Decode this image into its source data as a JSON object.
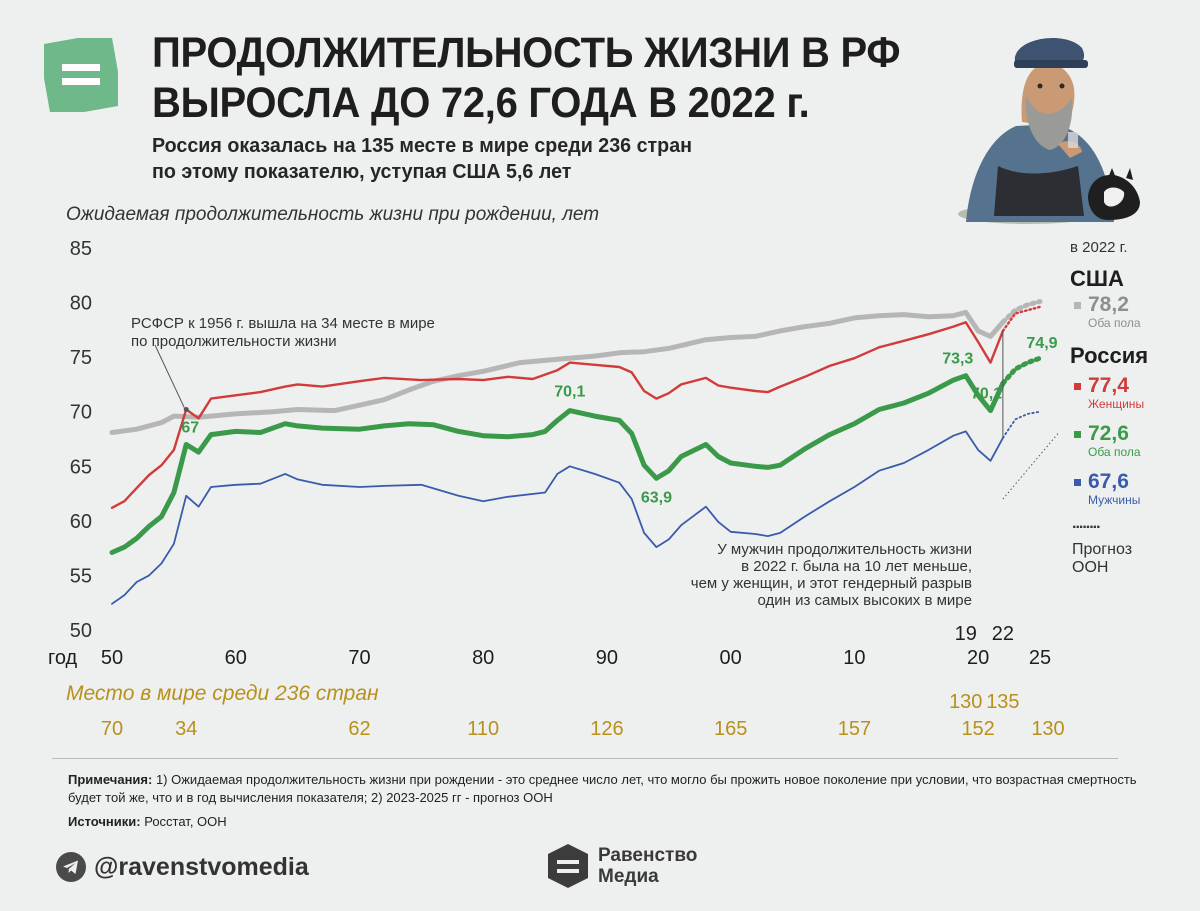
{
  "header": {
    "title_line1": "ПРОДОЛЖИТЕЛЬНОСТЬ ЖИЗНИ В РФ",
    "title_line2": "ВЫРОСЛА ДО 72,6 ГОДА В 2022 г.",
    "subtitle_line1": "Россия оказалась на 135 месте в мире среди 236 стран",
    "subtitle_line2": "по этому показателю, уступая США 5,6 лет"
  },
  "colors": {
    "usa": "#b6b6b6",
    "women": "#d23b3b",
    "both": "#3a9a4a",
    "men": "#3a5bab",
    "rank": "#b8901c",
    "logo": "#6fb88a"
  },
  "chart_data": {
    "type": "line",
    "title": "Ожидаемая продолжительность жизни при рождении, лет",
    "xlabel": "год",
    "ylim": [
      50,
      85
    ],
    "xlim": [
      1950,
      2025
    ],
    "y_ticks": [
      "50",
      "55",
      "60",
      "65",
      "70",
      "75",
      "80",
      "85"
    ],
    "x_ticks": [
      {
        "x": 1950,
        "label": "50"
      },
      {
        "x": 1960,
        "label": "60"
      },
      {
        "x": 1970,
        "label": "70"
      },
      {
        "x": 1980,
        "label": "80"
      },
      {
        "x": 1990,
        "label": "90"
      },
      {
        "x": 2000,
        "label": "00"
      },
      {
        "x": 2010,
        "label": "10"
      },
      {
        "x": 2020,
        "label": "20"
      },
      {
        "x": 2025,
        "label": "25"
      }
    ],
    "x_ticks_upper": [
      {
        "x": 2019,
        "label": "19"
      },
      {
        "x": 2022,
        "label": "22"
      }
    ],
    "forecast_from": 2022,
    "series": [
      {
        "key": "usa",
        "name": "США",
        "values": [
          [
            1950,
            68.1
          ],
          [
            1952,
            68.4
          ],
          [
            1954,
            69.0
          ],
          [
            1955,
            69.6
          ],
          [
            1957,
            69.5
          ],
          [
            1960,
            69.8
          ],
          [
            1963,
            70.0
          ],
          [
            1965,
            70.2
          ],
          [
            1968,
            70.1
          ],
          [
            1970,
            70.6
          ],
          [
            1972,
            71.1
          ],
          [
            1974,
            72.0
          ],
          [
            1976,
            72.8
          ],
          [
            1978,
            73.3
          ],
          [
            1980,
            73.7
          ],
          [
            1983,
            74.5
          ],
          [
            1986,
            74.8
          ],
          [
            1989,
            75.1
          ],
          [
            1991,
            75.4
          ],
          [
            1993,
            75.5
          ],
          [
            1995,
            75.8
          ],
          [
            1998,
            76.6
          ],
          [
            2000,
            76.8
          ],
          [
            2002,
            76.9
          ],
          [
            2004,
            77.4
          ],
          [
            2006,
            77.8
          ],
          [
            2008,
            78.1
          ],
          [
            2010,
            78.6
          ],
          [
            2012,
            78.8
          ],
          [
            2014,
            78.9
          ],
          [
            2016,
            78.7
          ],
          [
            2018,
            78.8
          ],
          [
            2019,
            79.1
          ],
          [
            2020,
            77.4
          ],
          [
            2021,
            76.9
          ],
          [
            2022,
            78.2
          ],
          [
            2023,
            79.3
          ],
          [
            2024,
            79.8
          ],
          [
            2025,
            80.1
          ]
        ]
      },
      {
        "key": "women",
        "name": "Женщины",
        "values": [
          [
            1950,
            61.2
          ],
          [
            1951,
            61.8
          ],
          [
            1952,
            63.0
          ],
          [
            1953,
            64.2
          ],
          [
            1954,
            65.1
          ],
          [
            1955,
            66.5
          ],
          [
            1956,
            70.2
          ],
          [
            1957,
            69.4
          ],
          [
            1958,
            71.2
          ],
          [
            1960,
            71.5
          ],
          [
            1962,
            71.8
          ],
          [
            1964,
            72.3
          ],
          [
            1965,
            72.5
          ],
          [
            1967,
            72.3
          ],
          [
            1970,
            72.8
          ],
          [
            1972,
            73.1
          ],
          [
            1975,
            72.9
          ],
          [
            1978,
            73.0
          ],
          [
            1980,
            72.9
          ],
          [
            1982,
            73.2
          ],
          [
            1984,
            73.0
          ],
          [
            1986,
            73.8
          ],
          [
            1987,
            74.5
          ],
          [
            1989,
            74.3
          ],
          [
            1991,
            74.1
          ],
          [
            1992,
            73.6
          ],
          [
            1993,
            71.9
          ],
          [
            1994,
            71.2
          ],
          [
            1995,
            71.7
          ],
          [
            1996,
            72.5
          ],
          [
            1998,
            73.1
          ],
          [
            1999,
            72.4
          ],
          [
            2000,
            72.2
          ],
          [
            2002,
            71.9
          ],
          [
            2003,
            71.8
          ],
          [
            2004,
            72.3
          ],
          [
            2006,
            73.2
          ],
          [
            2008,
            74.2
          ],
          [
            2010,
            74.9
          ],
          [
            2012,
            75.9
          ],
          [
            2014,
            76.5
          ],
          [
            2016,
            77.1
          ],
          [
            2018,
            77.8
          ],
          [
            2019,
            78.2
          ],
          [
            2020,
            76.4
          ],
          [
            2021,
            74.5
          ],
          [
            2022,
            77.4
          ],
          [
            2023,
            79.0
          ],
          [
            2024,
            79.3
          ],
          [
            2025,
            79.6
          ]
        ]
      },
      {
        "key": "both",
        "name": "Оба пола",
        "values": [
          [
            1950,
            57.1
          ],
          [
            1951,
            57.6
          ],
          [
            1952,
            58.4
          ],
          [
            1953,
            59.5
          ],
          [
            1954,
            60.4
          ],
          [
            1955,
            62.6
          ],
          [
            1956,
            67.0
          ],
          [
            1957,
            66.3
          ],
          [
            1958,
            67.9
          ],
          [
            1960,
            68.2
          ],
          [
            1962,
            68.1
          ],
          [
            1964,
            68.9
          ],
          [
            1965,
            68.7
          ],
          [
            1967,
            68.5
          ],
          [
            1970,
            68.4
          ],
          [
            1972,
            68.7
          ],
          [
            1974,
            68.9
          ],
          [
            1976,
            68.8
          ],
          [
            1978,
            68.2
          ],
          [
            1980,
            67.8
          ],
          [
            1982,
            67.7
          ],
          [
            1984,
            67.9
          ],
          [
            1985,
            68.2
          ],
          [
            1986,
            69.2
          ],
          [
            1987,
            70.1
          ],
          [
            1989,
            69.6
          ],
          [
            1991,
            69.2
          ],
          [
            1992,
            68.0
          ],
          [
            1993,
            65.1
          ],
          [
            1994,
            63.9
          ],
          [
            1995,
            64.6
          ],
          [
            1996,
            65.9
          ],
          [
            1998,
            67.0
          ],
          [
            1999,
            65.9
          ],
          [
            2000,
            65.3
          ],
          [
            2002,
            65.0
          ],
          [
            2003,
            64.9
          ],
          [
            2004,
            65.1
          ],
          [
            2006,
            66.6
          ],
          [
            2008,
            67.9
          ],
          [
            2010,
            68.9
          ],
          [
            2012,
            70.2
          ],
          [
            2014,
            70.8
          ],
          [
            2016,
            71.7
          ],
          [
            2018,
            72.9
          ],
          [
            2019,
            73.3
          ],
          [
            2020,
            71.5
          ],
          [
            2021,
            70.1
          ],
          [
            2022,
            72.6
          ],
          [
            2023,
            73.9
          ],
          [
            2024,
            74.5
          ],
          [
            2025,
            74.9
          ]
        ]
      },
      {
        "key": "men",
        "name": "Мужчины",
        "values": [
          [
            1950,
            52.4
          ],
          [
            1951,
            53.2
          ],
          [
            1952,
            54.4
          ],
          [
            1953,
            55.0
          ],
          [
            1954,
            56.1
          ],
          [
            1955,
            57.9
          ],
          [
            1956,
            62.3
          ],
          [
            1957,
            61.3
          ],
          [
            1958,
            63.1
          ],
          [
            1960,
            63.3
          ],
          [
            1962,
            63.4
          ],
          [
            1964,
            64.3
          ],
          [
            1965,
            63.8
          ],
          [
            1967,
            63.3
          ],
          [
            1970,
            63.1
          ],
          [
            1972,
            63.2
          ],
          [
            1975,
            63.3
          ],
          [
            1978,
            62.3
          ],
          [
            1980,
            61.8
          ],
          [
            1982,
            62.2
          ],
          [
            1985,
            62.6
          ],
          [
            1986,
            64.3
          ],
          [
            1987,
            65.0
          ],
          [
            1989,
            64.3
          ],
          [
            1991,
            63.5
          ],
          [
            1992,
            62.0
          ],
          [
            1993,
            58.9
          ],
          [
            1994,
            57.6
          ],
          [
            1995,
            58.3
          ],
          [
            1996,
            59.6
          ],
          [
            1998,
            61.3
          ],
          [
            1999,
            59.9
          ],
          [
            2000,
            59.0
          ],
          [
            2002,
            58.8
          ],
          [
            2003,
            58.6
          ],
          [
            2004,
            58.9
          ],
          [
            2006,
            60.4
          ],
          [
            2008,
            61.8
          ],
          [
            2010,
            63.1
          ],
          [
            2012,
            64.6
          ],
          [
            2014,
            65.3
          ],
          [
            2016,
            66.5
          ],
          [
            2018,
            67.8
          ],
          [
            2019,
            68.2
          ],
          [
            2020,
            66.5
          ],
          [
            2021,
            65.5
          ],
          [
            2022,
            67.6
          ],
          [
            2023,
            69.3
          ],
          [
            2024,
            69.8
          ],
          [
            2025,
            70.0
          ]
        ]
      }
    ],
    "point_labels": [
      {
        "series": "both",
        "x": 1956,
        "text": "67"
      },
      {
        "series": "both",
        "x": 1987,
        "text": "70,1"
      },
      {
        "series": "both",
        "x": 1994,
        "text": "63,9"
      },
      {
        "series": "both",
        "x": 2019,
        "text": "73,3"
      },
      {
        "series": "both",
        "x": 2021,
        "text": "70,1"
      },
      {
        "series": "both",
        "x": 2025,
        "text": "74,9"
      }
    ],
    "annotations": [
      {
        "key": "rsfsr",
        "lines": [
          "РСФСР к 1956 г. вышла на 34 месте в мире",
          "по продолжительности жизни"
        ]
      },
      {
        "key": "gender",
        "lines": [
          "У мужчин продолжительность жизни",
          "в 2022 г. была на 10 лет меньше,",
          "чем у женщин, и этот гендерный разрыв",
          "один из самых высоких в мире"
        ]
      }
    ],
    "legend": {
      "position": "right",
      "year_label": "в 2022 г.",
      "usa_country": "США",
      "usa_value": "78,2",
      "usa_sub": "Оба пола",
      "russia_country": "Россия",
      "items": [
        {
          "key": "women",
          "value": "77,4",
          "label": "Женщины"
        },
        {
          "key": "both",
          "value": "72,6",
          "label": "Оба пола"
        },
        {
          "key": "men",
          "value": "67,6",
          "label": "Мужчины"
        }
      ],
      "forecast_dots": "........",
      "forecast_label_1": "Прогноз",
      "forecast_label_2": "ООН"
    },
    "ranks": {
      "title": "Место в мире среди 236 стран",
      "upper": [
        {
          "x": 2019,
          "label": "130"
        },
        {
          "x": 2022,
          "label": "135"
        }
      ],
      "lower": [
        {
          "x": 1950,
          "label": "70"
        },
        {
          "x": 1956,
          "label": "34"
        },
        {
          "x": 1970,
          "label": "62"
        },
        {
          "x": 1980,
          "label": "110"
        },
        {
          "x": 1990,
          "label": "126"
        },
        {
          "x": 2000,
          "label": "165"
        },
        {
          "x": 2010,
          "label": "157"
        },
        {
          "x": 2020,
          "label": "152"
        },
        {
          "x": 2025,
          "label": "130"
        }
      ]
    }
  },
  "notes": {
    "label": "Примечания:",
    "text": " 1) Ожидаемая продолжительность жизни при рождении - это среднее число лет, что могло бы прожить новое поколение при условии, что возрастная смертность будет той же, что и в год вычисления показателя; 2) 2023-2025 гг - прогноз ООН",
    "sources_label": "Источники:",
    "sources_text": " Росстат, ООН"
  },
  "footer": {
    "telegram": "@ravenstvomedia",
    "brand_line1": "Равенство",
    "brand_line2": "Медиа"
  }
}
